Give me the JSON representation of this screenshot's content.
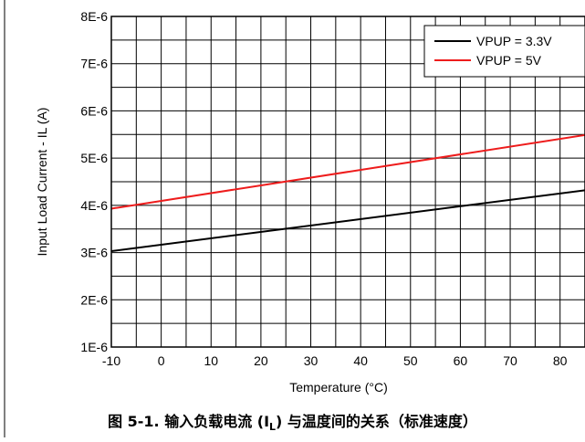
{
  "chart_data": {
    "type": "line",
    "xlabel": "Temperature (°C)",
    "ylabel": "Input Load Current - IL (A)",
    "xlim": [
      -10,
      85
    ],
    "ylim": [
      1e-06,
      8e-06
    ],
    "x_ticks": [
      -10,
      0,
      10,
      20,
      30,
      40,
      50,
      60,
      70,
      80
    ],
    "x_tick_labels": [
      "-10",
      "0",
      "10",
      "20",
      "30",
      "40",
      "50",
      "60",
      "70",
      "80"
    ],
    "y_ticks": [
      1e-06,
      2e-06,
      3e-06,
      4e-06,
      5e-06,
      6e-06,
      7e-06,
      8e-06
    ],
    "y_tick_labels": [
      "1E-6",
      "2E-6",
      "3E-6",
      "4E-6",
      "5E-6",
      "6E-6",
      "7E-6",
      "8E-6"
    ],
    "grid": true,
    "legend_position": "top-right",
    "series": [
      {
        "name": "VPUP = 3.3V",
        "color": "#000000",
        "x": [
          -10,
          85
        ],
        "y": [
          3.03e-06,
          4.32e-06
        ]
      },
      {
        "name": "VPUP = 5V",
        "color": "#ee1c1c",
        "x": [
          -10,
          85
        ],
        "y": [
          3.93e-06,
          5.49e-06
        ]
      }
    ]
  },
  "caption": {
    "prefix": "图 5-1. 输入负载电流 (I",
    "subscript": "L",
    "suffix": ") 与温度间的关系（标准速度）"
  }
}
